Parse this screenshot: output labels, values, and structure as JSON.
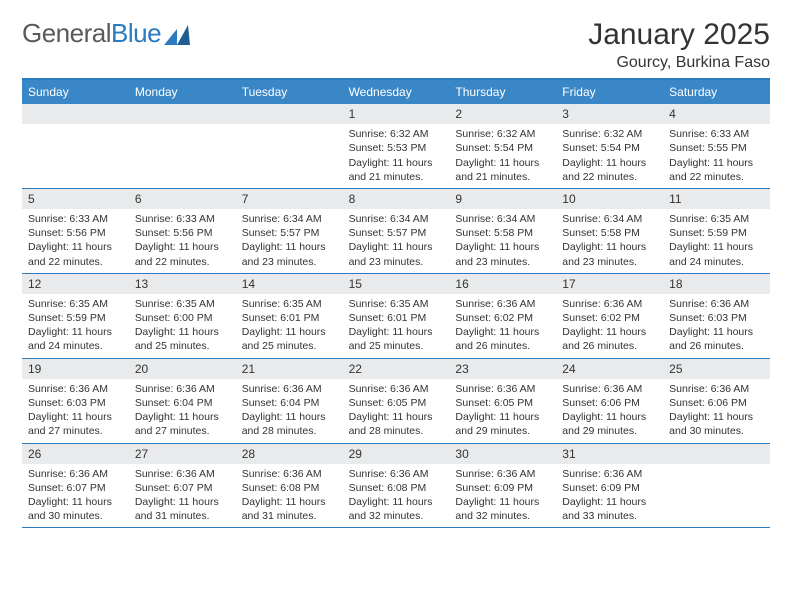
{
  "logo": {
    "textGeneral": "General",
    "textBlue": "Blue"
  },
  "title": "January 2025",
  "location": "Gourcy, Burkina Faso",
  "colors": {
    "accent": "#2b7bbf",
    "headerBg": "#3a87c7",
    "dayNumBg": "#e8eaec",
    "text": "#333333",
    "logoGray": "#5a5a5a"
  },
  "weekdays": [
    "Sunday",
    "Monday",
    "Tuesday",
    "Wednesday",
    "Thursday",
    "Friday",
    "Saturday"
  ],
  "weeks": [
    [
      null,
      null,
      null,
      {
        "n": "1",
        "sunrise": "6:32 AM",
        "sunset": "5:53 PM",
        "dl": "11 hours and 21 minutes."
      },
      {
        "n": "2",
        "sunrise": "6:32 AM",
        "sunset": "5:54 PM",
        "dl": "11 hours and 21 minutes."
      },
      {
        "n": "3",
        "sunrise": "6:32 AM",
        "sunset": "5:54 PM",
        "dl": "11 hours and 22 minutes."
      },
      {
        "n": "4",
        "sunrise": "6:33 AM",
        "sunset": "5:55 PM",
        "dl": "11 hours and 22 minutes."
      }
    ],
    [
      {
        "n": "5",
        "sunrise": "6:33 AM",
        "sunset": "5:56 PM",
        "dl": "11 hours and 22 minutes."
      },
      {
        "n": "6",
        "sunrise": "6:33 AM",
        "sunset": "5:56 PM",
        "dl": "11 hours and 22 minutes."
      },
      {
        "n": "7",
        "sunrise": "6:34 AM",
        "sunset": "5:57 PM",
        "dl": "11 hours and 23 minutes."
      },
      {
        "n": "8",
        "sunrise": "6:34 AM",
        "sunset": "5:57 PM",
        "dl": "11 hours and 23 minutes."
      },
      {
        "n": "9",
        "sunrise": "6:34 AM",
        "sunset": "5:58 PM",
        "dl": "11 hours and 23 minutes."
      },
      {
        "n": "10",
        "sunrise": "6:34 AM",
        "sunset": "5:58 PM",
        "dl": "11 hours and 23 minutes."
      },
      {
        "n": "11",
        "sunrise": "6:35 AM",
        "sunset": "5:59 PM",
        "dl": "11 hours and 24 minutes."
      }
    ],
    [
      {
        "n": "12",
        "sunrise": "6:35 AM",
        "sunset": "5:59 PM",
        "dl": "11 hours and 24 minutes."
      },
      {
        "n": "13",
        "sunrise": "6:35 AM",
        "sunset": "6:00 PM",
        "dl": "11 hours and 25 minutes."
      },
      {
        "n": "14",
        "sunrise": "6:35 AM",
        "sunset": "6:01 PM",
        "dl": "11 hours and 25 minutes."
      },
      {
        "n": "15",
        "sunrise": "6:35 AM",
        "sunset": "6:01 PM",
        "dl": "11 hours and 25 minutes."
      },
      {
        "n": "16",
        "sunrise": "6:36 AM",
        "sunset": "6:02 PM",
        "dl": "11 hours and 26 minutes."
      },
      {
        "n": "17",
        "sunrise": "6:36 AM",
        "sunset": "6:02 PM",
        "dl": "11 hours and 26 minutes."
      },
      {
        "n": "18",
        "sunrise": "6:36 AM",
        "sunset": "6:03 PM",
        "dl": "11 hours and 26 minutes."
      }
    ],
    [
      {
        "n": "19",
        "sunrise": "6:36 AM",
        "sunset": "6:03 PM",
        "dl": "11 hours and 27 minutes."
      },
      {
        "n": "20",
        "sunrise": "6:36 AM",
        "sunset": "6:04 PM",
        "dl": "11 hours and 27 minutes."
      },
      {
        "n": "21",
        "sunrise": "6:36 AM",
        "sunset": "6:04 PM",
        "dl": "11 hours and 28 minutes."
      },
      {
        "n": "22",
        "sunrise": "6:36 AM",
        "sunset": "6:05 PM",
        "dl": "11 hours and 28 minutes."
      },
      {
        "n": "23",
        "sunrise": "6:36 AM",
        "sunset": "6:05 PM",
        "dl": "11 hours and 29 minutes."
      },
      {
        "n": "24",
        "sunrise": "6:36 AM",
        "sunset": "6:06 PM",
        "dl": "11 hours and 29 minutes."
      },
      {
        "n": "25",
        "sunrise": "6:36 AM",
        "sunset": "6:06 PM",
        "dl": "11 hours and 30 minutes."
      }
    ],
    [
      {
        "n": "26",
        "sunrise": "6:36 AM",
        "sunset": "6:07 PM",
        "dl": "11 hours and 30 minutes."
      },
      {
        "n": "27",
        "sunrise": "6:36 AM",
        "sunset": "6:07 PM",
        "dl": "11 hours and 31 minutes."
      },
      {
        "n": "28",
        "sunrise": "6:36 AM",
        "sunset": "6:08 PM",
        "dl": "11 hours and 31 minutes."
      },
      {
        "n": "29",
        "sunrise": "6:36 AM",
        "sunset": "6:08 PM",
        "dl": "11 hours and 32 minutes."
      },
      {
        "n": "30",
        "sunrise": "6:36 AM",
        "sunset": "6:09 PM",
        "dl": "11 hours and 32 minutes."
      },
      {
        "n": "31",
        "sunrise": "6:36 AM",
        "sunset": "6:09 PM",
        "dl": "11 hours and 33 minutes."
      },
      null
    ]
  ],
  "labels": {
    "sunrise": "Sunrise:",
    "sunset": "Sunset:",
    "daylight": "Daylight:"
  }
}
